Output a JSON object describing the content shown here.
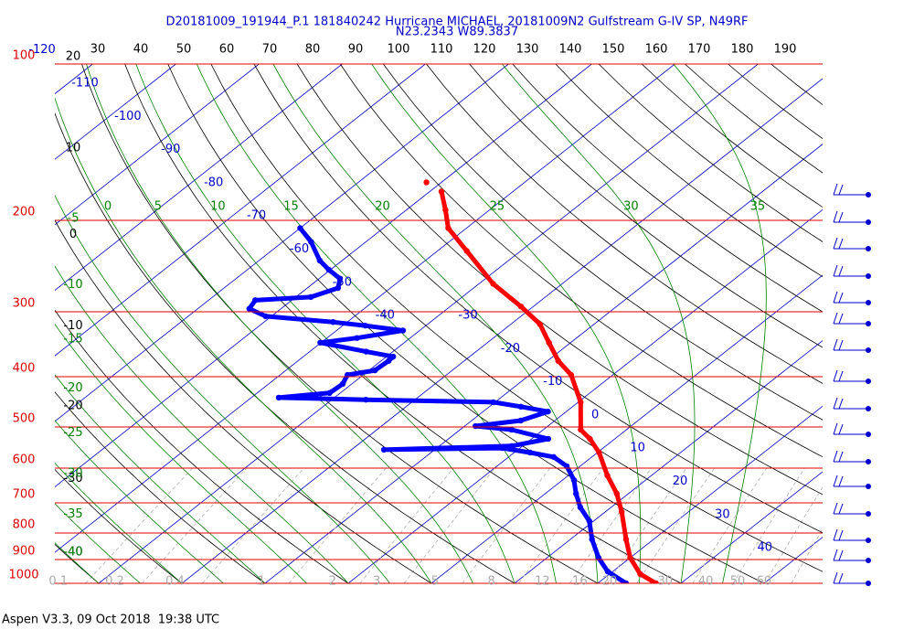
{
  "chart_data": {
    "type": "skewt",
    "title": "D20181009_191944_P.1 181840242 Hurricane MICHAEL, 20181009N2 Gulfstream G-IV SP, N49RF",
    "subtitle": "N23.2343 W89.3837",
    "footer": "Aspen V3.3, 09 Oct 2018  19:38 UTC",
    "log_y": true,
    "ylim": [
      1000,
      100
    ],
    "yticks": [
      100,
      200,
      300,
      400,
      500,
      600,
      700,
      800,
      900,
      1000
    ],
    "top_ticks": [
      30,
      40,
      50,
      60,
      70,
      80,
      90,
      100,
      110,
      120,
      130,
      140,
      150,
      160,
      170,
      180,
      190
    ],
    "isotherms": [
      -120,
      -110,
      -100,
      -90,
      -80,
      -70,
      -60,
      -50,
      -40,
      -30,
      -20,
      -10,
      0,
      10,
      20,
      30,
      40
    ],
    "dry_adiabats": [
      20,
      10,
      0,
      -10,
      -20,
      -30,
      -40
    ],
    "moist_adiabats": [
      0,
      5,
      10,
      15,
      20,
      25,
      30,
      35,
      -5,
      -10,
      -15,
      -20,
      -25,
      -30,
      -35,
      -40
    ],
    "mixing_ratios": [
      0.1,
      0.2,
      0.4,
      1,
      2,
      3,
      5,
      8,
      12,
      16,
      20,
      30,
      40,
      50,
      60
    ],
    "series": [
      {
        "color": "#ff0000",
        "pressure": [
          1000,
          960,
          893,
          823,
          729,
          672,
          620,
          560,
          527,
          506,
          448,
          397,
          373,
          344,
          317,
          293,
          265,
          229,
          207,
          191,
          176
        ],
        "values": [
          27.0,
          23.7,
          20.0,
          16.7,
          12.0,
          8.6,
          4.7,
          0.2,
          -3.0,
          -5.5,
          -9.7,
          -15.0,
          -18.7,
          -22.6,
          -26.5,
          -31.5,
          -38.3,
          -46.5,
          -52.2,
          -55.3,
          -58.6
        ]
      },
      {
        "color": "#0000ff",
        "pressure": [
          1000,
          949,
          893,
          823,
          759,
          714,
          672,
          633,
          595,
          571,
          560,
          549,
          553,
          544,
          527,
          506,
          498,
          486,
          467,
          457,
          448,
          443,
          439,
          430,
          413,
          397,
          389,
          373,
          366,
          358,
          344,
          337,
          326,
          319,
          314,
          306,
          296,
          285,
          281,
          270,
          259,
          249,
          239,
          220,
          207
        ],
        "values": [
          23.4,
          19.4,
          16.2,
          12.6,
          9.5,
          6.3,
          3.7,
          1.4,
          -1.6,
          -4.6,
          -8.1,
          -12.1,
          -26.1,
          -11.3,
          -8.0,
          -13.8,
          -18.7,
          -14.1,
          -12.2,
          -16.2,
          -20.2,
          -35.9,
          -46.7,
          -41.3,
          -41.1,
          -41.9,
          -39.3,
          -39.1,
          -39.2,
          -43.2,
          -50.1,
          -46.4,
          -42.0,
          -47.3,
          -51.7,
          -60.7,
          -63.8,
          -64.4,
          -58.2,
          -56.3,
          -57.5,
          -60.2,
          -62.7,
          -66.6,
          -70.0
        ]
      },
      {
        "color": "#ff0000",
        "pressure": [
          169
        ],
        "values": [
          -61.8
        ]
      }
    ]
  }
}
